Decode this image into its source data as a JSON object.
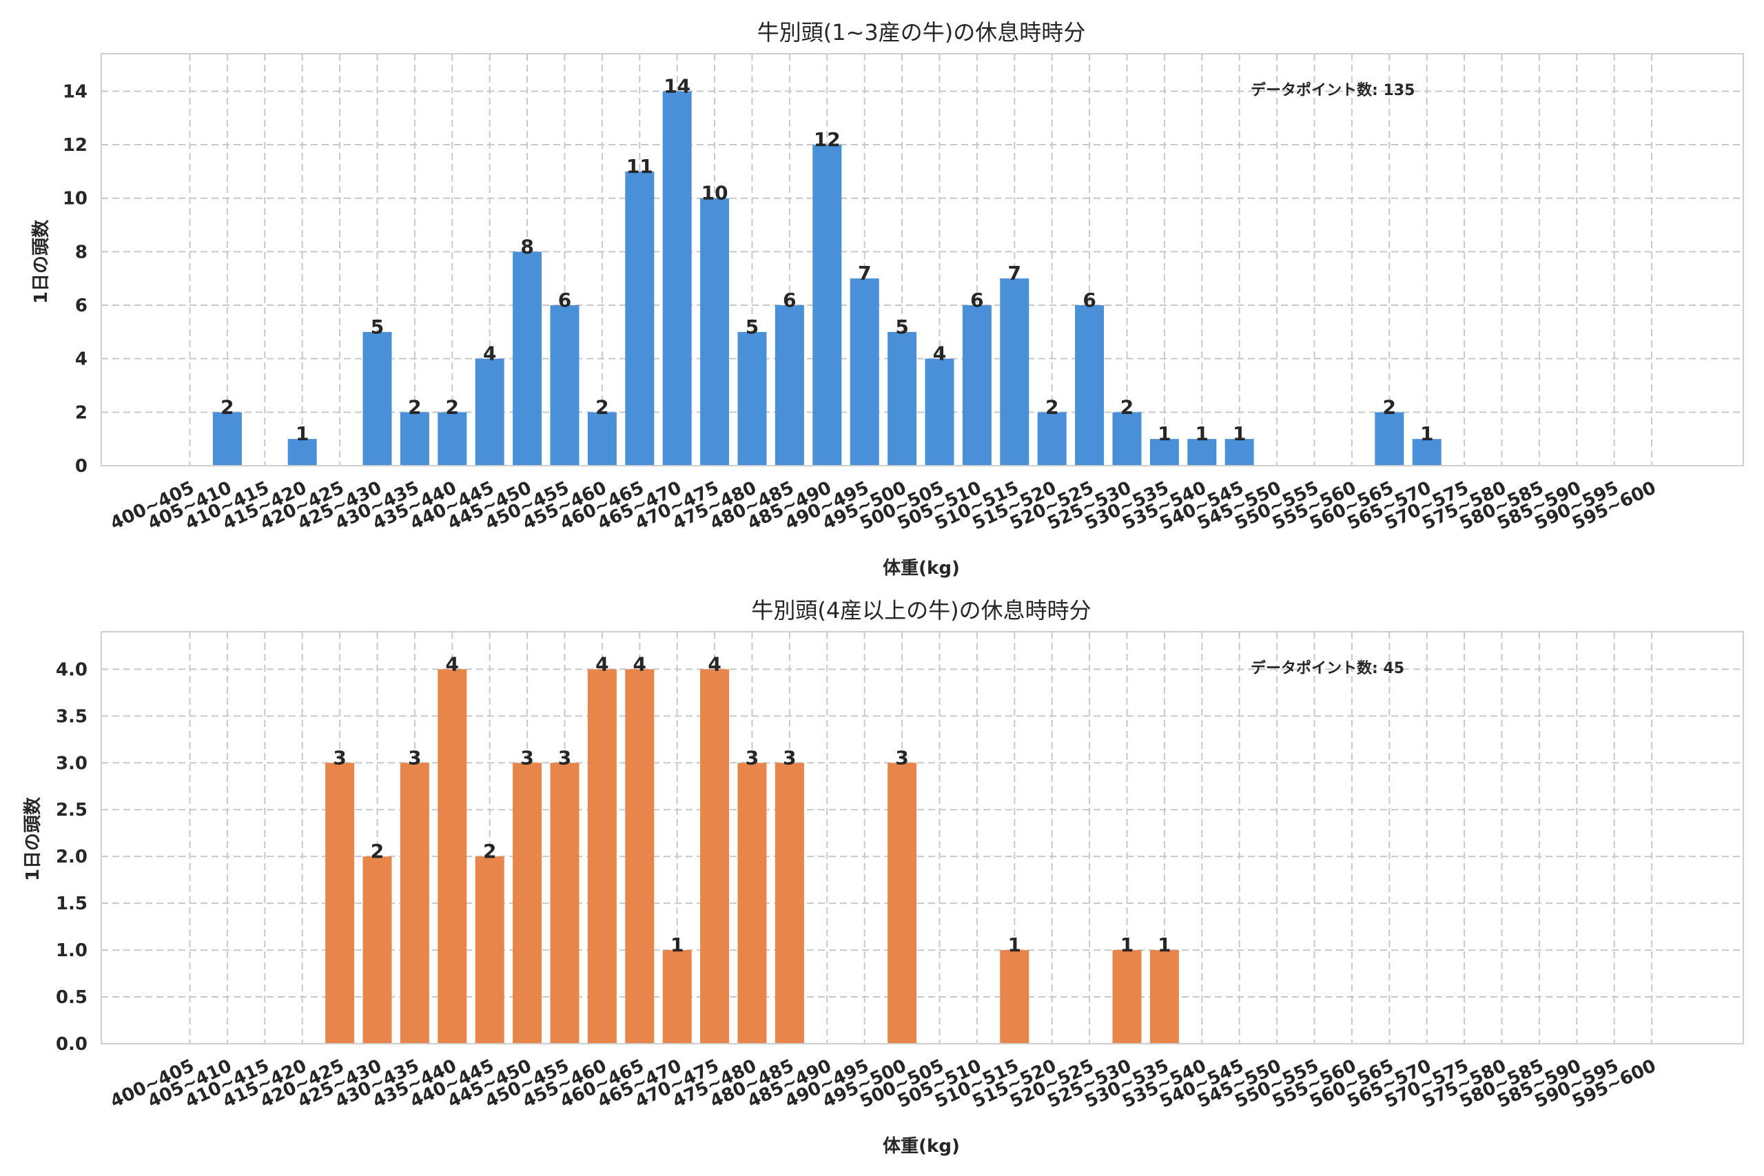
{
  "chart_data": [
    {
      "type": "bar",
      "title": "牛別頭(1~3産の牛)の休息時時分",
      "xlabel": "体重(kg)",
      "ylabel": "1日の頭数",
      "annotation": "データポイント数: 135",
      "color": "#4a90d9",
      "ylim": [
        0,
        15.4
      ],
      "yticks": [
        "0",
        "2",
        "4",
        "6",
        "8",
        "10",
        "12",
        "14"
      ],
      "ytick_values": [
        0,
        2,
        4,
        6,
        8,
        10,
        12,
        14
      ],
      "categories": [
        "400~405",
        "405~410",
        "410~415",
        "415~420",
        "420~425",
        "425~430",
        "430~435",
        "435~440",
        "440~445",
        "445~450",
        "450~455",
        "455~460",
        "460~465",
        "465~470",
        "470~475",
        "475~480",
        "480~485",
        "485~490",
        "490~495",
        "495~500",
        "500~505",
        "505~510",
        "510~515",
        "515~520",
        "520~525",
        "525~530",
        "530~535",
        "535~540",
        "540~545",
        "545~550",
        "550~555",
        "555~560",
        "560~565",
        "565~570",
        "570~575",
        "575~580",
        "580~585",
        "585~590",
        "590~595",
        "595~600"
      ],
      "values": [
        0,
        2,
        0,
        1,
        0,
        5,
        2,
        2,
        4,
        8,
        6,
        2,
        11,
        14,
        10,
        5,
        6,
        12,
        7,
        5,
        4,
        6,
        7,
        2,
        6,
        2,
        1,
        1,
        1,
        0,
        0,
        0,
        2,
        1,
        0,
        0,
        0,
        0,
        0,
        0
      ],
      "value_labels": [
        "",
        "2",
        "",
        "1",
        "",
        "5",
        "2",
        "2",
        "4",
        "8",
        "6",
        "2",
        "11",
        "14",
        "10",
        "5",
        "6",
        "12",
        "7",
        "5",
        "4",
        "6",
        "7",
        "2",
        "6",
        "2",
        "1",
        "1",
        "1",
        "",
        "",
        "",
        "2",
        "1",
        "",
        "",
        "",
        "",
        "",
        ""
      ]
    },
    {
      "type": "bar",
      "title": "牛別頭(4産以上の牛)の休息時時分",
      "xlabel": "体重(kg)",
      "ylabel": "1日の頭数",
      "annotation": "データポイント数: 45",
      "color": "#e8854a",
      "ylim": [
        0,
        4.4
      ],
      "yticks": [
        "0.0",
        "0.5",
        "1.0",
        "1.5",
        "2.0",
        "2.5",
        "3.0",
        "3.5",
        "4.0"
      ],
      "ytick_values": [
        0,
        0.5,
        1,
        1.5,
        2,
        2.5,
        3,
        3.5,
        4
      ],
      "categories": [
        "400~405",
        "405~410",
        "410~415",
        "415~420",
        "420~425",
        "425~430",
        "430~435",
        "435~440",
        "440~445",
        "445~450",
        "450~455",
        "455~460",
        "460~465",
        "465~470",
        "470~475",
        "475~480",
        "480~485",
        "485~490",
        "490~495",
        "495~500",
        "500~505",
        "505~510",
        "510~515",
        "515~520",
        "520~525",
        "525~530",
        "530~535",
        "535~540",
        "540~545",
        "545~550",
        "550~555",
        "555~560",
        "560~565",
        "565~570",
        "570~575",
        "575~580",
        "580~585",
        "585~590",
        "590~595",
        "595~600"
      ],
      "values": [
        0,
        0,
        0,
        0,
        3,
        2,
        3,
        4,
        2,
        3,
        3,
        4,
        4,
        1,
        4,
        3,
        3,
        0,
        0,
        3,
        0,
        0,
        1,
        0,
        0,
        1,
        1,
        0,
        0,
        0,
        0,
        0,
        0,
        0,
        0,
        0,
        0,
        0,
        0,
        0
      ],
      "value_labels": [
        "",
        "",
        "",
        "",
        "3",
        "2",
        "3",
        "4",
        "2",
        "3",
        "3",
        "4",
        "4",
        "1",
        "4",
        "3",
        "3",
        "",
        "",
        "3",
        "",
        "",
        "1",
        "",
        "",
        "1",
        "1",
        "",
        "",
        "",
        "",
        "",
        "",
        "",
        "",
        "",
        "",
        "",
        "",
        ""
      ]
    }
  ]
}
